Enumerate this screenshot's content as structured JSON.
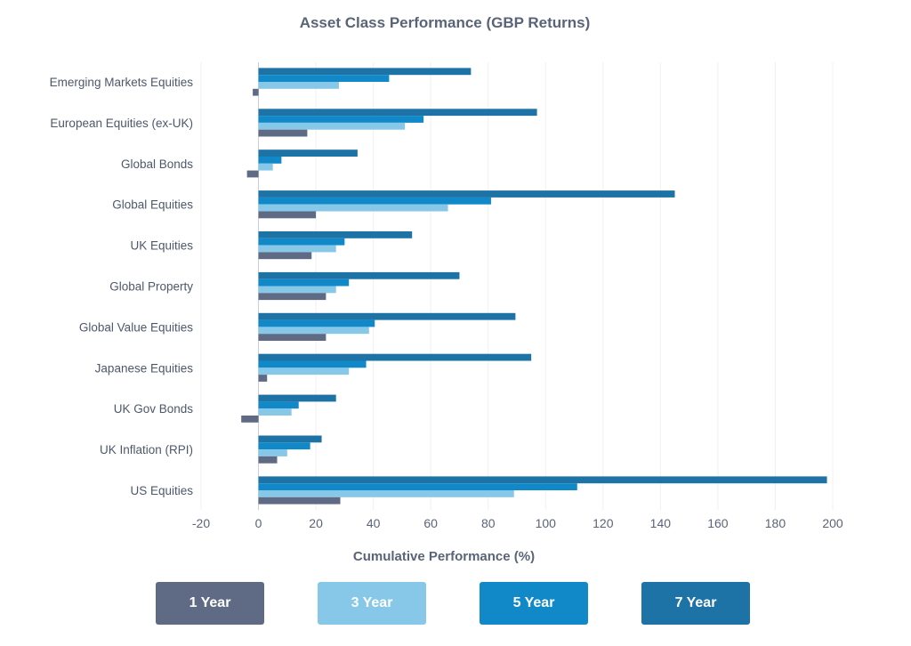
{
  "chart_data": {
    "type": "bar",
    "orientation": "horizontal",
    "title": "Asset Class Performance (GBP Returns)",
    "xlabel": "Cumulative Performance (%)",
    "ylabel": "",
    "xlim": [
      -20,
      200
    ],
    "x_ticks": [
      -20,
      0,
      20,
      40,
      60,
      80,
      100,
      120,
      140,
      160,
      180,
      200
    ],
    "grid": true,
    "legend_position": "bottom",
    "categories": [
      "Emerging Markets Equities",
      "European Equities (ex-UK)",
      "Global Bonds",
      "Global Equities",
      "UK Equities",
      "Global Property",
      "Global Value Equities",
      "Japanese Equities",
      "UK Gov Bonds",
      "UK Inflation (RPI)",
      "US Equities"
    ],
    "series": [
      {
        "name": "1 Year",
        "color": "#5f6b85",
        "values": [
          -2,
          17,
          -4,
          20,
          18.5,
          23.5,
          23.5,
          3,
          -6,
          6.5,
          28.5
        ]
      },
      {
        "name": "3 Year",
        "color": "#87c7e8",
        "values": [
          28,
          51,
          5,
          66,
          27,
          27,
          38.5,
          31.5,
          11.5,
          10,
          89
        ]
      },
      {
        "name": "5 Year",
        "color": "#1189c8",
        "values": [
          45.5,
          57.5,
          8,
          81,
          30,
          31.5,
          40.5,
          37.5,
          14,
          18,
          111
        ]
      },
      {
        "name": "7 Year",
        "color": "#1d72a6",
        "values": [
          74,
          97,
          34.5,
          145,
          53.5,
          70,
          89.5,
          95,
          27,
          22,
          198
        ]
      }
    ]
  }
}
